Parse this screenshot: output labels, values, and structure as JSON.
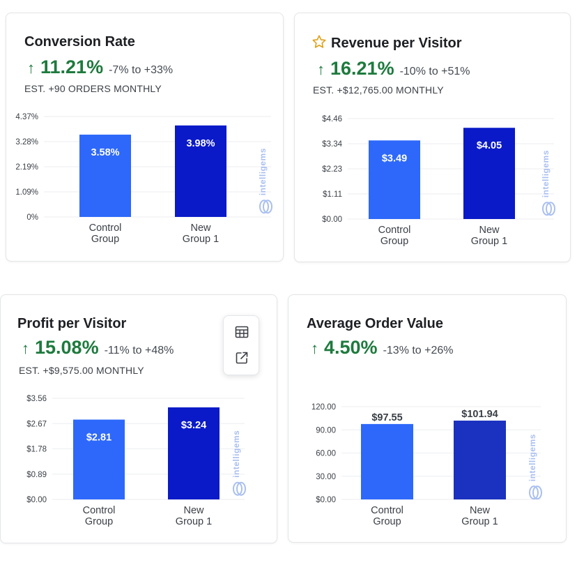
{
  "colors": {
    "control": "#2d68fa",
    "new_group": "#0a1ac8",
    "new_group_aov": "#1b31bf",
    "positive": "#1e7a3d",
    "watermark": "#a9bff0"
  },
  "watermark": "intelligems",
  "cards": [
    {
      "title": "Conversion Rate",
      "lift": "11.21%",
      "range": "-7% to +33%",
      "est": "EST. +90 ORDERS MONTHLY",
      "icon": "arrow-up-icon",
      "chart_data": {
        "type": "bar",
        "title": "Conversion Rate",
        "categories": [
          [
            "Control",
            "Group"
          ],
          [
            "New",
            "Group 1"
          ]
        ],
        "values": [
          3.58,
          3.98
        ],
        "value_labels": [
          "3.58%",
          "3.98%"
        ],
        "yticks": [
          "0%",
          "1.09%",
          "2.19%",
          "3.28%",
          "4.37%"
        ],
        "ylim": [
          0,
          4.37
        ],
        "labels_inside": true
      }
    },
    {
      "title": "Revenue per Visitor",
      "lift": "16.21%",
      "range": "-10% to +51%",
      "est": "EST. +$12,765.00 MONTHLY",
      "icon": "star-icon",
      "chart_data": {
        "type": "bar",
        "title": "Revenue per Visitor",
        "categories": [
          [
            "Control",
            "Group"
          ],
          [
            "New",
            "Group 1"
          ]
        ],
        "values": [
          3.49,
          4.05
        ],
        "value_labels": [
          "$3.49",
          "$4.05"
        ],
        "yticks": [
          "$0.00",
          "$1.11",
          "$2.23",
          "$3.34",
          "$4.46"
        ],
        "ylim": [
          0,
          4.46
        ],
        "labels_inside": true
      }
    },
    {
      "title": "Profit per Visitor",
      "lift": "15.08%",
      "range": "-11% to +48%",
      "est": "EST. +$9,575.00 MONTHLY",
      "icon": "arrow-up-icon",
      "chart_data": {
        "type": "bar",
        "title": "Profit per Visitor",
        "categories": [
          [
            "Control",
            "Group"
          ],
          [
            "New",
            "Group 1"
          ]
        ],
        "values": [
          2.81,
          3.24
        ],
        "value_labels": [
          "$2.81",
          "$3.24"
        ],
        "yticks": [
          "$0.00",
          "$0.89",
          "$1.78",
          "$2.67",
          "$3.56"
        ],
        "ylim": [
          0,
          3.56
        ],
        "labels_inside": true
      }
    },
    {
      "title": "Average Order Value",
      "lift": "4.50%",
      "range": "-13% to +26%",
      "est": "",
      "icon": "arrow-up-icon",
      "chart_data": {
        "type": "bar",
        "title": "Average Order Value",
        "categories": [
          [
            "Control",
            "Group"
          ],
          [
            "New",
            "Group 1"
          ]
        ],
        "values": [
          97.55,
          101.94
        ],
        "value_labels": [
          "$97.55",
          "$101.94"
        ],
        "yticks": [
          "$0.00",
          "30.00",
          "60.00",
          "90.00",
          "120.00"
        ],
        "ylim": [
          0,
          120
        ],
        "labels_inside": false
      }
    }
  ],
  "toolbar": {
    "table_icon": "table-icon",
    "export_icon": "external-link-icon"
  }
}
